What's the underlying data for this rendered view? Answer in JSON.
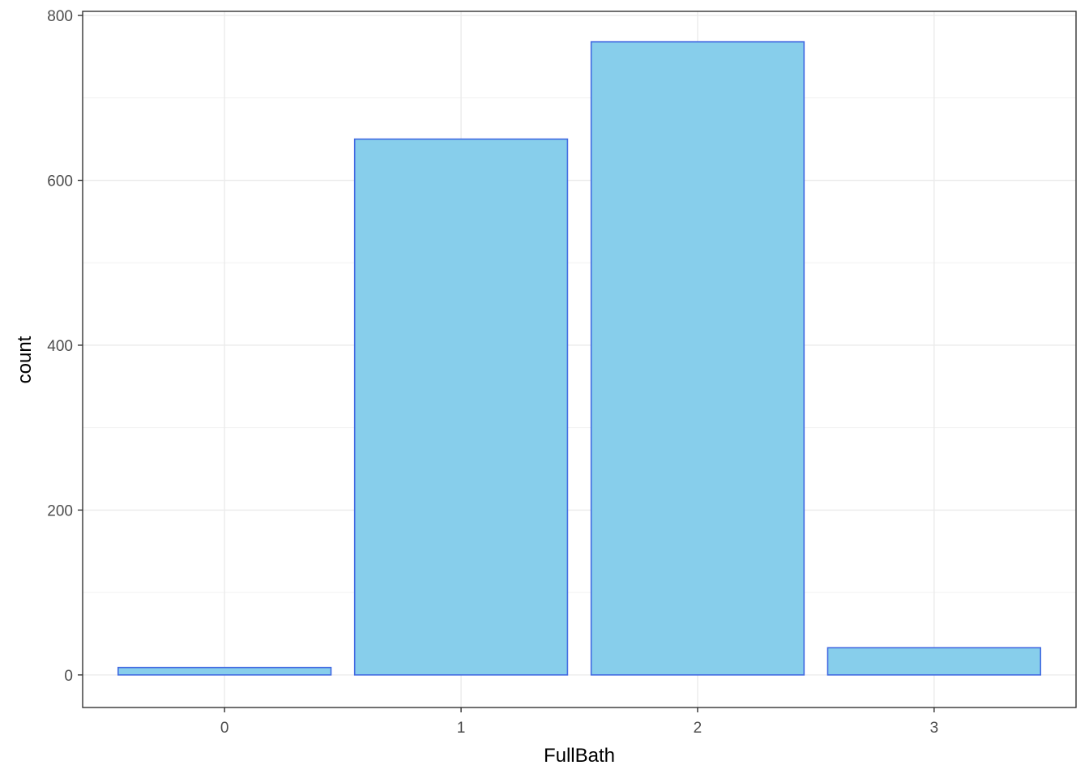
{
  "chart_data": {
    "type": "bar",
    "categories": [
      "0",
      "1",
      "2",
      "3"
    ],
    "values": [
      9,
      650,
      768,
      33
    ],
    "xlabel": "FullBath",
    "ylabel": "count",
    "ylim": [
      -39.5,
      805
    ],
    "yticks": [
      0,
      200,
      400,
      600,
      800
    ],
    "grid": true,
    "legend": "none",
    "colors": {
      "bar_fill": "#87CEEB",
      "bar_stroke": "#4169E1",
      "grid_major": "#EBEBEB",
      "grid_minor": "#F2F2F2",
      "panel_border": "#333333"
    }
  }
}
